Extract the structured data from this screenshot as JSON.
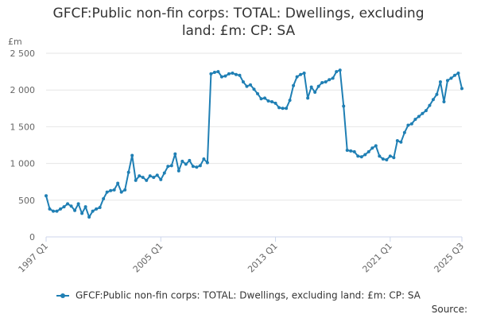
{
  "title_line1": "GFCF:Public non-fin corps: TOTAL: Dwellings, excluding",
  "title_line2": "land: £m: CP: SA",
  "source_label": "Source:",
  "colors": {
    "series": "#1f7fb4",
    "grid": "#e6e6e6",
    "axis": "#ccd6eb",
    "text": "#666666"
  },
  "chart_data": {
    "type": "line",
    "unit_label": "£m",
    "y_ticks": [
      "0",
      "500",
      "1 000",
      "1 500",
      "2 000",
      "2 500"
    ],
    "x_tick_labels": [
      "1997 Q1",
      "2005 Q1",
      "2013 Q1",
      "2021 Q1",
      "2025 Q3"
    ],
    "ylim": [
      0,
      2500
    ],
    "grid": true,
    "legend_position": "bottom",
    "series": [
      {
        "name": "GFCF:Public non-fin corps: TOTAL: Dwellings, excluding land: £m: CP: SA",
        "values": [
          560,
          380,
          350,
          350,
          380,
          410,
          450,
          420,
          360,
          450,
          320,
          410,
          270,
          350,
          380,
          400,
          520,
          610,
          630,
          640,
          730,
          610,
          640,
          880,
          1110,
          770,
          830,
          810,
          770,
          830,
          810,
          840,
          780,
          870,
          960,
          970,
          1130,
          900,
          1030,
          990,
          1040,
          960,
          950,
          970,
          1060,
          1010,
          2220,
          2240,
          2250,
          2180,
          2190,
          2220,
          2230,
          2210,
          2200,
          2110,
          2050,
          2070,
          2010,
          1950,
          1880,
          1890,
          1850,
          1840,
          1820,
          1760,
          1750,
          1750,
          1860,
          2060,
          2180,
          2210,
          2230,
          1890,
          2040,
          1970,
          2050,
          2100,
          2110,
          2140,
          2160,
          2250,
          2270,
          1780,
          1180,
          1170,
          1160,
          1100,
          1090,
          1120,
          1160,
          1210,
          1240,
          1100,
          1060,
          1050,
          1100,
          1080,
          1310,
          1290,
          1420,
          1520,
          1540,
          1600,
          1640,
          1680,
          1720,
          1790,
          1870,
          1940,
          2110,
          1840,
          2130,
          2160,
          2200,
          2230,
          2020
        ]
      }
    ]
  }
}
